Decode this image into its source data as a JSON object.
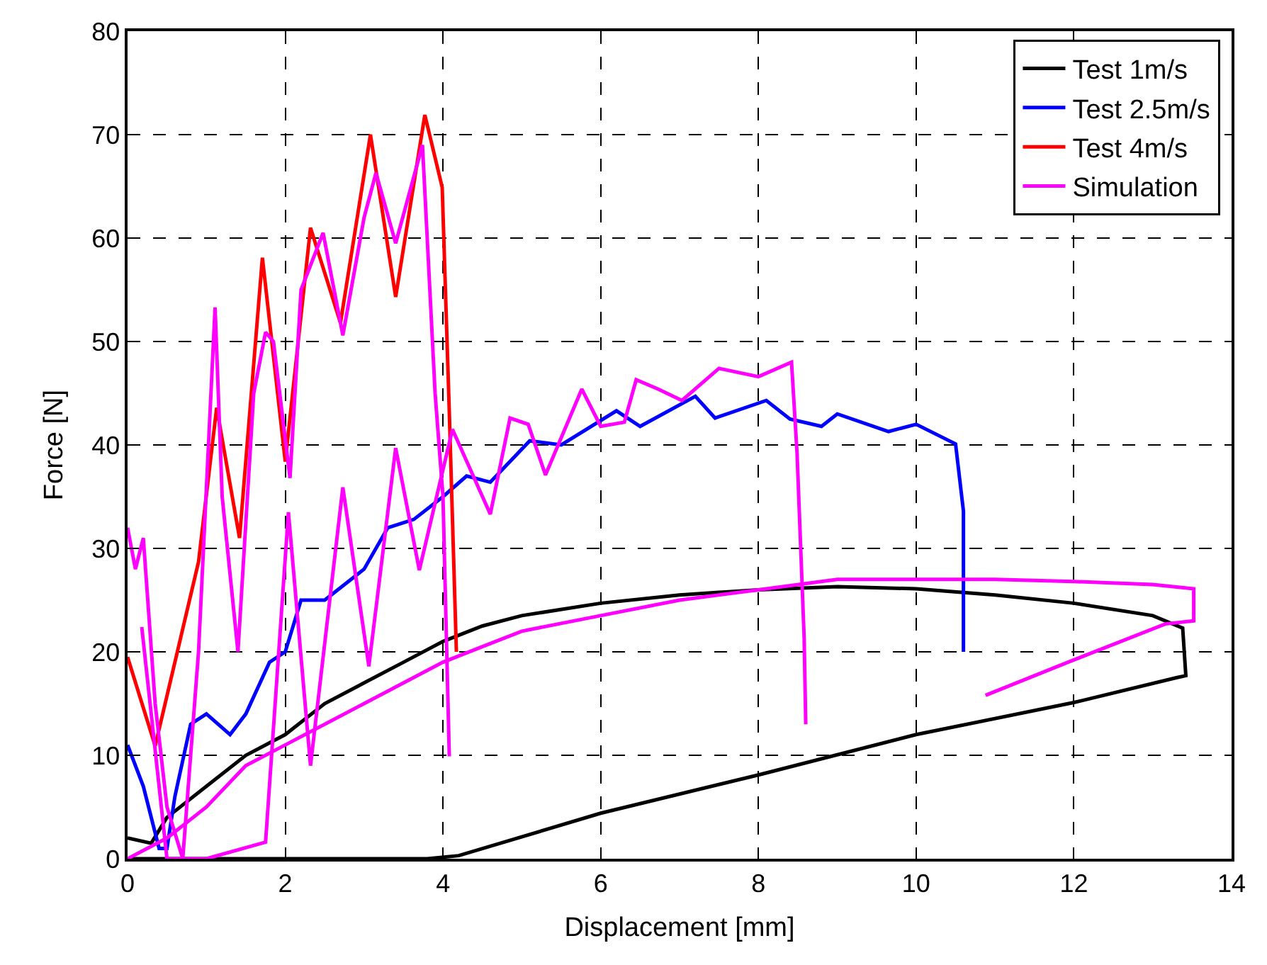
{
  "chart_data": {
    "type": "line",
    "xlabel": "Displacement [mm]",
    "ylabel": "Force [N]",
    "xlim": [
      0,
      14
    ],
    "xticks": [
      0,
      2,
      4,
      6,
      8,
      10,
      12,
      14
    ],
    "ylim": [
      0,
      80
    ],
    "yticks": [
      0,
      10,
      20,
      30,
      40,
      50,
      60,
      70,
      80
    ],
    "grid": true,
    "legend": "top right",
    "marker": "none",
    "line_style": "solid",
    "series": [
      {
        "name": "Test 1m/s",
        "color": "#000000",
        "x": [
          0,
          0.3,
          0.5,
          1,
          1.5,
          2,
          2.5,
          3,
          3.5,
          4,
          4.5,
          5,
          6,
          7,
          8,
          9,
          10,
          11,
          12,
          13,
          13.38,
          13.42,
          13.3,
          12,
          10,
          8,
          6,
          4.2,
          3.8,
          0
        ],
        "values": [
          2,
          1.5,
          4,
          7,
          10,
          12,
          15,
          17,
          19,
          21,
          22.5,
          23.5,
          24.7,
          25.5,
          26,
          26.3,
          26.1,
          25.5,
          24.7,
          23.5,
          22.3,
          17.7,
          17.5,
          15.1,
          12,
          8.1,
          4.4,
          0.3,
          0,
          0
        ]
      },
      {
        "name": "Test 2.5m/s",
        "color": "#0000ff",
        "x": [
          0,
          0.2,
          0.4,
          0.5,
          0.6,
          0.8,
          1,
          1.3,
          1.5,
          1.8,
          2,
          2.2,
          2.5,
          3,
          3.3,
          3.63,
          4,
          4.3,
          4.6,
          5.1,
          5.5,
          6.2,
          6.5,
          7.2,
          7.45,
          8.1,
          8.4,
          8.8,
          9.0,
          9.65,
          10.0,
          10.5,
          10.6,
          10.6
        ],
        "values": [
          11,
          7,
          1,
          1,
          6,
          13,
          14,
          12,
          14,
          19,
          20,
          25,
          25,
          28,
          32,
          32.8,
          35,
          37,
          36.4,
          40.4,
          40,
          43.3,
          41.8,
          44.7,
          42.6,
          44.3,
          42.5,
          41.8,
          43,
          41.3,
          42,
          40.1,
          33.6,
          20
        ]
      },
      {
        "name": "Test 4m/s",
        "color": "#ff0000",
        "x": [
          0,
          0.35,
          0.9,
          1.13,
          1.42,
          1.71,
          2.0,
          2.32,
          2.7,
          3.08,
          3.4,
          3.77,
          3.99,
          4.08,
          4.17
        ],
        "values": [
          19.5,
          10.9,
          28.7,
          43.6,
          31,
          58.1,
          38.4,
          61,
          51.8,
          70,
          54.3,
          71.9,
          64.9,
          43.2,
          20
        ]
      },
      {
        "name": "Simulation",
        "color": "#ff00ff",
        "x": [
          0,
          0.1,
          0.2,
          0.35,
          0.5,
          0.7,
          0.9,
          1.11,
          1.2,
          1.4,
          1.6,
          1.75,
          1.85,
          2.06,
          2.2,
          2.48,
          2.73,
          3.0,
          3.15,
          3.4,
          3.74,
          3.9,
          4.0,
          4.08,
          null,
          0.18,
          0.5,
          1.0,
          1.75,
          2.04,
          2.32,
          2.73,
          3.06,
          3.4,
          3.7,
          4.12,
          4.6,
          4.85,
          5.08,
          5.3,
          5.76,
          6.0,
          6.3,
          6.45,
          6.73,
          7.03,
          7.5,
          8.0,
          8.42,
          8.49,
          8.58,
          8.6,
          null,
          0,
          0.5,
          1,
          1.5,
          2,
          3,
          4,
          4.5,
          5,
          6,
          7,
          8,
          9,
          10,
          11,
          12,
          13,
          13.52,
          13.52,
          13.16,
          11.96,
          10.88
        ],
        "values": [
          32,
          28,
          31,
          15,
          5,
          0,
          20,
          53.3,
          35,
          20,
          45,
          50.9,
          50,
          36.8,
          55,
          60.5,
          50.6,
          62,
          66.3,
          59.5,
          69,
          45,
          35,
          9.9,
          null,
          22.4,
          0,
          0,
          1.6,
          33.5,
          9,
          35.9,
          18.6,
          39.7,
          27.9,
          41.5,
          33.3,
          42.6,
          42,
          37.1,
          45.4,
          41.8,
          42.2,
          46.3,
          45.4,
          44.3,
          47.4,
          46.6,
          48,
          39.2,
          21.3,
          13,
          null,
          0,
          2,
          5,
          9,
          11,
          15,
          19,
          20.5,
          22,
          23.5,
          25,
          26,
          27,
          27,
          27,
          26.8,
          26.5,
          26.1,
          23,
          22.7,
          19.1,
          15.8
        ]
      }
    ]
  }
}
